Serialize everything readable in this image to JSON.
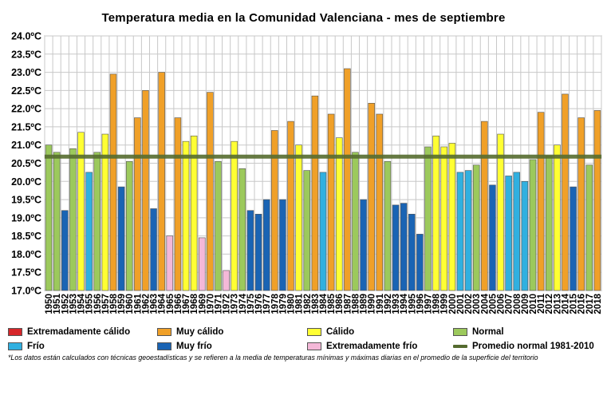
{
  "chart_data": {
    "type": "bar",
    "title": "Temperatura media en la Comunidad Valenciana - mes de septiembre",
    "ylim": [
      17.0,
      24.0
    ],
    "y_ticks": [
      "17.0ºC",
      "17.5ºC",
      "18.0ºC",
      "18.5ºC",
      "19.0ºC",
      "19.5ºC",
      "20.0ºC",
      "20.5ºC",
      "21.0ºC",
      "21.5ºC",
      "22.0ºC",
      "22.5ºC",
      "23.0ºC",
      "23.5ºC",
      "24.0ºC"
    ],
    "y_tick_values": [
      17.0,
      17.5,
      18.0,
      18.5,
      19.0,
      19.5,
      20.0,
      20.5,
      21.0,
      21.5,
      22.0,
      22.5,
      23.0,
      23.5,
      24.0
    ],
    "grid": true,
    "categories": [
      "1950",
      "1951",
      "1952",
      "1953",
      "1954",
      "1955",
      "1956",
      "1957",
      "1958",
      "1959",
      "1960",
      "1961",
      "1962",
      "1963",
      "1964",
      "1965",
      "1966",
      "1967",
      "1968",
      "1969",
      "1970",
      "1971",
      "1972",
      "1973",
      "1974",
      "1975",
      "1976",
      "1977",
      "1978",
      "1979",
      "1980",
      "1981",
      "1982",
      "1983",
      "1984",
      "1985",
      "1986",
      "1987",
      "1988",
      "1989",
      "1990",
      "1991",
      "1992",
      "1993",
      "1994",
      "1995",
      "1996",
      "1997",
      "1998",
      "1999",
      "2000",
      "2001",
      "2002",
      "2003",
      "2004",
      "2005",
      "2006",
      "2007",
      "2008",
      "2009",
      "2010",
      "2011",
      "2012",
      "2013",
      "2014",
      "2015",
      "2016",
      "2017",
      "2018"
    ],
    "values": [
      21.0,
      20.8,
      19.2,
      20.9,
      21.35,
      20.25,
      20.8,
      21.3,
      22.95,
      19.85,
      20.55,
      21.75,
      22.5,
      19.25,
      23.0,
      18.5,
      21.75,
      21.1,
      21.25,
      18.45,
      22.45,
      20.55,
      17.55,
      21.1,
      20.35,
      19.2,
      19.1,
      19.5,
      21.4,
      19.5,
      21.65,
      21.0,
      20.3,
      22.35,
      20.25,
      21.85,
      21.2,
      23.1,
      20.8,
      19.5,
      22.15,
      21.85,
      20.55,
      19.35,
      19.4,
      19.1,
      18.55,
      20.95,
      21.25,
      20.95,
      21.05,
      20.25,
      20.3,
      20.45,
      21.65,
      19.9,
      21.3,
      20.15,
      20.25,
      20.0,
      20.6,
      21.9,
      20.7,
      21.0,
      22.4,
      19.85,
      21.75,
      20.45,
      21.95
    ],
    "classes": [
      "Normal",
      "Normal",
      "Muy frío",
      "Normal",
      "Cálido",
      "Frío",
      "Normal",
      "Cálido",
      "Muy cálido",
      "Muy frío",
      "Normal",
      "Muy cálido",
      "Muy cálido",
      "Muy frío",
      "Muy cálido",
      "Extremadamente frío",
      "Muy cálido",
      "Cálido",
      "Cálido",
      "Extremadamente frío",
      "Muy cálido",
      "Normal",
      "Extremadamente frío",
      "Cálido",
      "Normal",
      "Muy frío",
      "Muy frío",
      "Muy frío",
      "Muy cálido",
      "Muy frío",
      "Muy cálido",
      "Cálido",
      "Normal",
      "Muy cálido",
      "Frío",
      "Muy cálido",
      "Cálido",
      "Muy cálido",
      "Normal",
      "Muy frío",
      "Muy cálido",
      "Muy cálido",
      "Normal",
      "Muy frío",
      "Muy frío",
      "Muy frío",
      "Muy frío",
      "Normal",
      "Cálido",
      "Cálido",
      "Cálido",
      "Frío",
      "Frío",
      "Normal",
      "Muy cálido",
      "Muy frío",
      "Cálido",
      "Frío",
      "Frío",
      "Frío",
      "Normal",
      "Muy cálido",
      "Normal",
      "Cálido",
      "Muy cálido",
      "Muy frío",
      "Muy cálido",
      "Normal",
      "Muy cálido"
    ],
    "reference_line": {
      "name": "Promedio normal 1981-2010",
      "value": 20.68,
      "color": "#556b2f"
    },
    "legend": [
      {
        "name": "Extremadamente cálido",
        "color": "#d6262a"
      },
      {
        "name": "Muy cálido",
        "color": "#f0a028"
      },
      {
        "name": "Cálido",
        "color": "#ffff33"
      },
      {
        "name": "Normal",
        "color": "#9cc95c"
      },
      {
        "name": "Frío",
        "color": "#30b0e0"
      },
      {
        "name": "Muy frío",
        "color": "#1a64b4"
      },
      {
        "name": "Extremadamente frío",
        "color": "#f4b8d8"
      },
      {
        "name": "Promedio normal 1981-2010",
        "color": "#556b2f",
        "kind": "line"
      }
    ],
    "legend_placement": "bottom"
  },
  "footnote": "*Los datos están calculados con técnicas geoestadísticas y se refieren a la media de temperaturas mínimas y máximas diarias en el promedio de la superficie del territorio"
}
